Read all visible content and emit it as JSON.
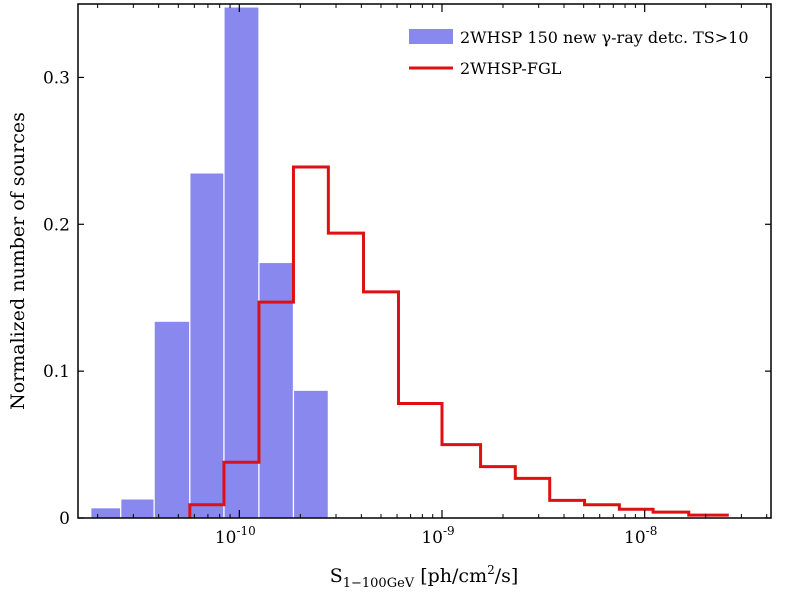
{
  "chart_data": {
    "type": "histogram",
    "title": "",
    "xlabel": "S",
    "xlabel_subscript": "1−100GeV",
    "xlabel_unit_prefix": " [ph/cm",
    "xlabel_unit_power": "2",
    "xlabel_unit_suffix": "/s]",
    "ylabel": "Normalized number of sources",
    "xscale": "log",
    "xlim": [
      1.6e-11,
      4.2e-08
    ],
    "ylim": [
      0,
      0.35
    ],
    "y_ticks": [
      {
        "value": 0,
        "label": "0"
      },
      {
        "value": 0.1,
        "label": "0.1"
      },
      {
        "value": 0.2,
        "label": "0.2"
      },
      {
        "value": 0.3,
        "label": "0.3"
      }
    ],
    "x_ticks": [
      {
        "value": 1e-10,
        "base": "10",
        "exp": "-10"
      },
      {
        "value": 1e-09,
        "base": "10",
        "exp": "-9"
      },
      {
        "value": 1e-08,
        "base": "10",
        "exp": "-8"
      }
    ],
    "legend_position": "top-right",
    "series": [
      {
        "name": "2WHSP 150 new γ-ray detc. TS>10",
        "style": "filled",
        "color": "#8888ee",
        "bin_edges": [
          1.85e-11,
          2.6e-11,
          3.8e-11,
          5.7e-11,
          8.4e-11,
          1.25e-10,
          1.85e-10,
          2.75e-10
        ],
        "values": [
          0.007,
          0.013,
          0.134,
          0.235,
          0.348,
          0.174,
          0.087
        ]
      },
      {
        "name": "2WHSP-FGL",
        "style": "step",
        "color": "#dd1111",
        "bin_edges": [
          5.7e-11,
          8.4e-11,
          1.25e-10,
          1.85e-10,
          2.75e-10,
          4.1e-10,
          6.1e-10,
          1e-09,
          1.55e-09,
          2.3e-09,
          3.4e-09,
          5.05e-09,
          7.5e-09,
          1.1e-08,
          1.65e-08,
          2.6e-08
        ],
        "values": [
          0.009,
          0.038,
          0.147,
          0.239,
          0.194,
          0.154,
          0.078,
          0.05,
          0.035,
          0.027,
          0.012,
          0.009,
          0.006,
          0.004,
          0.002
        ]
      }
    ]
  }
}
